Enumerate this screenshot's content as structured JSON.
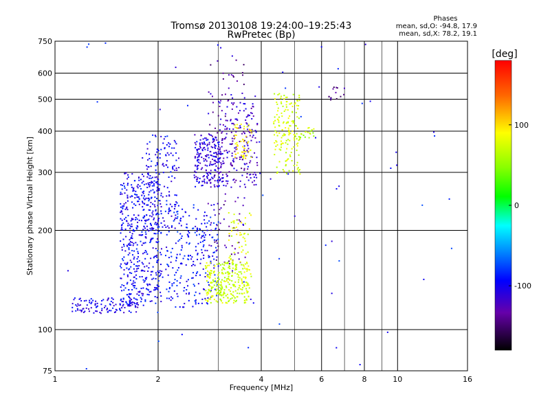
{
  "chart_data": {
    "type": "scatter",
    "title": "Tromsø 20130108 19:24:00–19:25:43",
    "subtitle": "RwPretec (Bp)",
    "xlabel": "Frequency [MHz]",
    "ylabel": "Stationary phase Virtual Height [km]",
    "x_scale": "log",
    "y_scale": "log",
    "xlim": [
      1,
      16
    ],
    "ylim": [
      75,
      750
    ],
    "x_ticks": [
      "1",
      "2",
      "4",
      "6",
      "8",
      "10",
      "16"
    ],
    "y_ticks": [
      "75",
      "100",
      "200",
      "300",
      "400",
      "500",
      "600",
      "750"
    ],
    "grid": true,
    "stats": {
      "header": "Phases",
      "line_o": "mean, sd,O: -94.8, 17.9",
      "line_x": "mean, sd,X: 78.2, 19.1"
    },
    "colorbar": {
      "label": "[deg]",
      "range": [
        -180,
        180
      ],
      "ticks": [
        "100",
        "0",
        "-100"
      ]
    },
    "clusters": [
      {
        "phase": -105,
        "x": [
          1.12,
          1.75
        ],
        "y": [
          112,
          125
        ],
        "n": 110
      },
      {
        "phase": -100,
        "x": [
          1.55,
          2.05
        ],
        "y": [
          118,
          300
        ],
        "n": 480
      },
      {
        "phase": -100,
        "x": [
          1.8,
          2.3
        ],
        "y": [
          200,
          390
        ],
        "n": 160
      },
      {
        "phase": -95,
        "x": [
          2.1,
          3.0
        ],
        "y": [
          117,
          240
        ],
        "n": 260
      },
      {
        "phase": -110,
        "x": [
          2.55,
          3.1
        ],
        "y": [
          270,
          390
        ],
        "n": 220
      },
      {
        "phase": -120,
        "x": [
          3.0,
          3.9
        ],
        "y": [
          270,
          520
        ],
        "n": 190
      },
      {
        "phase": -135,
        "x": [
          2.8,
          3.6
        ],
        "y": [
          150,
          660
        ],
        "n": 110
      },
      {
        "phase": 70,
        "x": [
          2.75,
          3.7
        ],
        "y": [
          120,
          160
        ],
        "n": 260
      },
      {
        "phase": 80,
        "x": [
          3.2,
          3.75
        ],
        "y": [
          135,
          230
        ],
        "n": 70
      },
      {
        "phase": 75,
        "x": [
          4.35,
          5.2
        ],
        "y": [
          295,
          520
        ],
        "n": 170
      },
      {
        "phase": 95,
        "x": [
          3.35,
          3.75
        ],
        "y": [
          330,
          420
        ],
        "n": 55
      },
      {
        "phase": 60,
        "x": [
          5.2,
          5.7
        ],
        "y": [
          380,
          410
        ],
        "n": 18
      },
      {
        "phase": -140,
        "x": [
          6.3,
          7.0
        ],
        "y": [
          495,
          545
        ],
        "n": 14
      },
      {
        "phase": -95,
        "x": [
          1.0,
          16.0
        ],
        "y": [
          75,
          750
        ],
        "n": 70
      }
    ]
  }
}
